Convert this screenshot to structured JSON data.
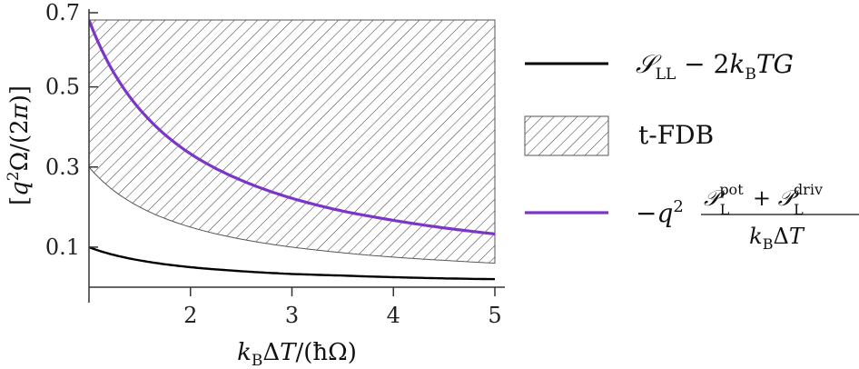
{
  "chart_data": {
    "type": "line",
    "xlabel": "k_B ΔT/(ħΩ)",
    "ylabel": "[q²Ω/(2π)]",
    "xlim": [
      1,
      5.1
    ],
    "ylim": [
      0,
      0.7
    ],
    "x_ticks": [
      "2",
      "3",
      "4",
      "5"
    ],
    "y_ticks": [
      "0.1",
      "0.3",
      "0.5",
      "0.7"
    ],
    "x_tick_values": [
      2,
      3,
      4,
      5
    ],
    "y_tick_values": [
      0.1,
      0.3,
      0.5,
      0.7
    ],
    "grid": false,
    "legend_position": "right",
    "series": [
      {
        "name": "S_LL − 2k_B TG",
        "color": "#000000",
        "x": [
          1,
          1.5,
          2,
          2.5,
          3,
          3.5,
          4,
          4.5,
          5
        ],
        "y": [
          0.1,
          0.067,
          0.05,
          0.04,
          0.033,
          0.029,
          0.025,
          0.022,
          0.02
        ]
      },
      {
        "name": "−q² (P_L^pot + P_L^driv)/(k_B ΔT)",
        "color": "#7b35c9",
        "x": [
          1,
          1.5,
          2,
          2.5,
          3,
          3.5,
          4,
          4.5,
          5
        ],
        "y": [
          0.667,
          0.444,
          0.333,
          0.267,
          0.222,
          0.19,
          0.167,
          0.148,
          0.133
        ]
      }
    ],
    "bands": [
      {
        "name": "t-FDB",
        "pattern": "hatched",
        "x": [
          1,
          1.5,
          2,
          2.5,
          3,
          3.5,
          4,
          4.5,
          5
        ],
        "lower": [
          0.3,
          0.2,
          0.15,
          0.12,
          0.1,
          0.086,
          0.075,
          0.067,
          0.06
        ],
        "upper": 0.667
      }
    ]
  },
  "legend": {
    "entries": [
      {
        "key": "black-line",
        "label": "S_LL − 2k_B TG"
      },
      {
        "key": "hatch",
        "label": "t-FDB"
      },
      {
        "key": "purple-line",
        "label": "−q² (P_L^pot + P_L^driv)/(k_B ΔT)"
      }
    ]
  }
}
